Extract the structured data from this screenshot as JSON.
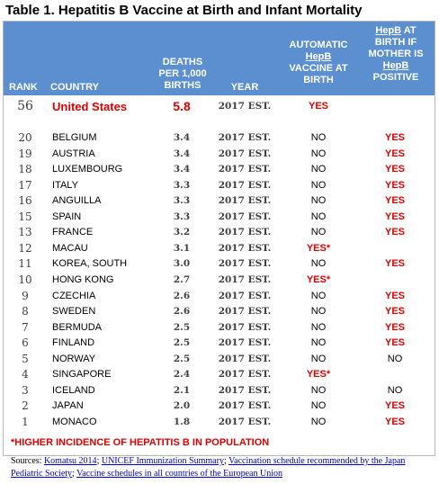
{
  "title": "Table 1. Hepatitis B Vaccine at Birth and Infant Mortality",
  "headers": {
    "rank": "RANK",
    "country": "COUNTRY",
    "deaths_l1": "DEATHS",
    "deaths_l2": "PER 1,000",
    "deaths_l3": "BIRTHS",
    "year": "YEAR",
    "auto_l1": "AUTOMATIC",
    "auto_l2": "HepB",
    "auto_l3": "VACCINE AT",
    "auto_l4": "BIRTH",
    "pos_l1": "HepB",
    "pos_l1b": " AT",
    "pos_l2": "BIRTH IF",
    "pos_l3": "MOTHER IS",
    "pos_l4": "HepB",
    "pos_l5": "POSITIVE"
  },
  "highlight_row": {
    "rank": "56",
    "country": "United States",
    "deaths": "5.8",
    "year": "2017 EST.",
    "auto": "YES",
    "ifpos": ""
  },
  "rows": [
    {
      "rank": "20",
      "country": "BELGIUM",
      "deaths": "3.4",
      "year": "2017 EST.",
      "auto": "NO",
      "ifpos": "YES"
    },
    {
      "rank": "19",
      "country": "AUSTRIA",
      "deaths": "3.4",
      "year": "2017 EST.",
      "auto": "NO",
      "ifpos": "YES"
    },
    {
      "rank": "18",
      "country": "LUXEMBOURG",
      "deaths": "3.4",
      "year": "2017 EST.",
      "auto": "NO",
      "ifpos": "YES"
    },
    {
      "rank": "17",
      "country": "ITALY",
      "deaths": "3.3",
      "year": "2017 EST.",
      "auto": "NO",
      "ifpos": "YES"
    },
    {
      "rank": "16",
      "country": "ANGUILLA",
      "deaths": "3.3",
      "year": "2017 EST.",
      "auto": "NO",
      "ifpos": "YES"
    },
    {
      "rank": "15",
      "country": "SPAIN",
      "deaths": "3.3",
      "year": "2017 EST.",
      "auto": "NO",
      "ifpos": "YES"
    },
    {
      "rank": "13",
      "country": "FRANCE",
      "deaths": "3.2",
      "year": "2017 EST.",
      "auto": "NO",
      "ifpos": "YES"
    },
    {
      "rank": "12",
      "country": "MACAU",
      "deaths": "3.1",
      "year": "2017 EST.",
      "auto": "YES*",
      "ifpos": ""
    },
    {
      "rank": "11",
      "country": "KOREA, SOUTH",
      "deaths": "3.0",
      "year": "2017 EST.",
      "auto": "NO",
      "ifpos": "YES"
    },
    {
      "rank": "10",
      "country": "HONG KONG",
      "deaths": "2.7",
      "year": "2017 EST.",
      "auto": "YES*",
      "ifpos": ""
    },
    {
      "rank": "9",
      "country": "CZECHIA",
      "deaths": "2.6",
      "year": "2017 EST.",
      "auto": "NO",
      "ifpos": "YES"
    },
    {
      "rank": "8",
      "country": "SWEDEN",
      "deaths": "2.6",
      "year": "2017 EST.",
      "auto": "NO",
      "ifpos": "YES"
    },
    {
      "rank": "7",
      "country": "BERMUDA",
      "deaths": "2.5",
      "year": "2017 EST.",
      "auto": "NO",
      "ifpos": "YES"
    },
    {
      "rank": "6",
      "country": "FINLAND",
      "deaths": "2.5",
      "year": "2017 EST.",
      "auto": "NO",
      "ifpos": "YES"
    },
    {
      "rank": "5",
      "country": "NORWAY",
      "deaths": "2.5",
      "year": "2017 EST.",
      "auto": "NO",
      "ifpos": "NO"
    },
    {
      "rank": "4",
      "country": "SINGAPORE",
      "deaths": "2.4",
      "year": "2017 EST.",
      "auto": "YES*",
      "ifpos": ""
    },
    {
      "rank": "3",
      "country": "ICELAND",
      "deaths": "2.1",
      "year": "2017 EST.",
      "auto": "NO",
      "ifpos": "NO"
    },
    {
      "rank": "2",
      "country": "JAPAN",
      "deaths": "2.0",
      "year": "2017 EST.",
      "auto": "NO",
      "ifpos": "YES"
    },
    {
      "rank": "1",
      "country": "MONACO",
      "deaths": "1.8",
      "year": "2017 EST.",
      "auto": "NO",
      "ifpos": "YES"
    }
  ],
  "footnote": "*HIGHER INCIDENCE OF HEPATITIS B IN POPULATION",
  "sources": {
    "prefix": "Sources: ",
    "link1": "Komatsu 2014",
    "sep1": "; ",
    "link2": "UNICEF Immunization Summary",
    "sep2": "; ",
    "link3": "Vaccination schedule recommended by the Japan Pediatric Society",
    "sep3": "; ",
    "link4": "Vaccine schedules in all countries of the European Union"
  },
  "colors": {
    "header_bg": "#5b8fd0",
    "yes_red": "#e00000"
  }
}
